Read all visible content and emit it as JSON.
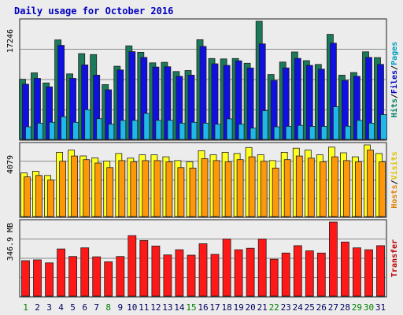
{
  "chart_data": {
    "type": "bar",
    "title": "Daily usage for October 2016",
    "categories": [
      "1",
      "2",
      "3",
      "4",
      "5",
      "6",
      "7",
      "8",
      "9",
      "10",
      "11",
      "12",
      "13",
      "14",
      "15",
      "16",
      "17",
      "18",
      "19",
      "20",
      "21",
      "22",
      "23",
      "24",
      "25",
      "26",
      "27",
      "28",
      "29",
      "30",
      "31"
    ],
    "weekend_days": [
      "1",
      "8",
      "15",
      "22",
      "29",
      "30"
    ],
    "panels": [
      {
        "name": "top",
        "axis_label": "17246",
        "right_labels": [
          {
            "text": "Hits",
            "color": "#008060"
          },
          {
            "text": "Files",
            "color": "#0000c0"
          },
          {
            "text": "Pages",
            "color": "#00a0c0"
          }
        ],
        "max": 17246,
        "series": [
          {
            "name": "Hits",
            "color": "#1a7a5a",
            "values": [
              8782,
              9713,
              8241,
              14520,
              9561,
              12519,
              12387,
              8006,
              10680,
              13657,
              12721,
              11170,
              11257,
              9908,
              10061,
              14557,
              11810,
              11753,
              11805,
              11123,
              17246,
              9472,
              11286,
              12767,
              11496,
              10943,
              15336,
              9386,
              9765,
              12790,
              11947
            ]
          },
          {
            "name": "Files",
            "color": "#1010e0",
            "values": [
              8061,
              8909,
              7668,
              13725,
              8909,
              10878,
              9379,
              7239,
              10135,
              12807,
              11974,
              10567,
              10615,
              9215,
              9379,
              13584,
              11040,
              10806,
              11474,
              10424,
              13948,
              8617,
              10440,
              11834,
              10806,
              10258,
              14055,
              8617,
              9215,
              11974,
              10942
            ]
          },
          {
            "name": "Pages",
            "color": "#20b8e8",
            "values": [
              1840,
              2373,
              2493,
              3306,
              2493,
              4333,
              3024,
              2217,
              2773,
              2785,
              3789,
              2784,
              2784,
              2373,
              2493,
              2373,
              2217,
              2996,
              2217,
              1640,
              4186,
              1840,
              1896,
              2048,
              1896,
              1896,
              4759,
              1920,
              2784,
              2373,
              3606
            ]
          }
        ]
      },
      {
        "name": "middle",
        "axis_label": "4079",
        "right_labels": [
          {
            "text": "Hosts",
            "color": "#e08000"
          },
          {
            "text": "Visits",
            "color": "#e0c000"
          }
        ],
        "max": 4079,
        "series": [
          {
            "name": "Visits",
            "color": "#ffff20",
            "values": [
              2485,
              2581,
              2341,
              3659,
              3784,
              3451,
              3341,
              3160,
              3591,
              3326,
              3512,
              3512,
              3404,
              3189,
              3117,
              3748,
              3519,
              3659,
              3591,
              3931,
              3519,
              3189,
              3659,
              3890,
              3784,
              3512,
              3954,
              3631,
              3404,
              4079,
              3591
            ]
          },
          {
            "name": "Hosts",
            "color": "#ff9808",
            "values": [
              2261,
              2341,
              2081,
              3145,
              3447,
              3241,
              3048,
              2788,
              3189,
              3117,
              3189,
              3189,
              3117,
              2788,
              2761,
              3296,
              3189,
              3117,
              3241,
              3404,
              3145,
              2761,
              3241,
              3447,
              3326,
              3117,
              3404,
              3189,
              3117,
              3784,
              3117
            ]
          }
        ]
      },
      {
        "name": "bottom",
        "axis_label": "346.9 MB",
        "right_labels": [
          {
            "text": "Transfer",
            "color": "#c00000"
          }
        ],
        "max": 346.9,
        "series": [
          {
            "name": "Transfer",
            "color": "#ff1818",
            "values": [
              166.2,
              169.8,
              155.7,
              220.9,
              185.8,
              226.1,
              184.0,
              160.9,
              185.8,
              283.5,
              260.7,
              234.8,
              192.9,
              217.5,
              192.0,
              245.3,
              195.6,
              267.7,
              217.5,
              224.3,
              267.7,
              172.8,
              202.0,
              236.5,
              212.2,
              202.0,
              346.9,
              253.7,
              226.1,
              217.5,
              236.5
            ]
          }
        ]
      }
    ]
  }
}
